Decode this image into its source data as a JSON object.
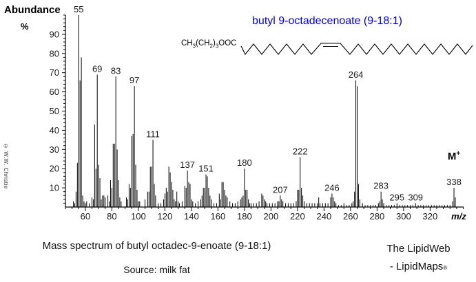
{
  "header": {
    "title": "butyl 9-octadecenoate  (9-18:1)",
    "title_color": "#0000ee"
  },
  "structure": {
    "formula_parts": {
      "p1": "CH",
      "s1": "3",
      "p2": "(CH",
      "s2": "2",
      "p3": ")",
      "s3": "3",
      "p4": "OOC"
    },
    "description": "cis double bond skeletal chain"
  },
  "axes": {
    "y_axis_title": "Abundance",
    "y_axis_unit": "%",
    "x_axis_title": "m/z",
    "x_ticks": [
      60,
      80,
      100,
      120,
      140,
      160,
      180,
      200,
      220,
      240,
      260,
      280,
      300,
      320
    ],
    "y_ticks": [
      10,
      20,
      30,
      40,
      50,
      60,
      70,
      80,
      90
    ]
  },
  "chart_data": {
    "type": "bar",
    "subtype": "mass-spectrum",
    "title": "butyl 9-octadecenoate (9-18:1)",
    "xlabel": "m/z",
    "ylabel": "Abundance %",
    "xlim": [
      45,
      345
    ],
    "ylim": [
      0,
      100
    ],
    "grid": false,
    "peaks": [
      [
        51,
        3
      ],
      [
        52,
        2
      ],
      [
        53,
        8
      ],
      [
        54,
        23
      ],
      [
        55,
        100
      ],
      [
        56,
        66
      ],
      [
        57,
        78
      ],
      [
        58,
        6
      ],
      [
        59,
        3
      ],
      [
        60,
        2
      ],
      [
        61,
        3
      ],
      [
        63,
        2
      ],
      [
        65,
        5
      ],
      [
        66,
        4
      ],
      [
        67,
        43
      ],
      [
        68,
        20
      ],
      [
        69,
        69
      ],
      [
        70,
        22
      ],
      [
        71,
        15
      ],
      [
        72,
        4
      ],
      [
        73,
        6
      ],
      [
        74,
        6
      ],
      [
        75,
        5
      ],
      [
        77,
        6
      ],
      [
        78,
        3
      ],
      [
        79,
        14
      ],
      [
        80,
        10
      ],
      [
        81,
        33
      ],
      [
        82,
        33
      ],
      [
        83,
        68
      ],
      [
        84,
        30
      ],
      [
        85,
        14
      ],
      [
        86,
        5
      ],
      [
        87,
        3
      ],
      [
        91,
        5
      ],
      [
        92,
        4
      ],
      [
        93,
        12
      ],
      [
        94,
        10
      ],
      [
        95,
        37
      ],
      [
        96,
        38
      ],
      [
        97,
        63
      ],
      [
        98,
        22
      ],
      [
        99,
        9
      ],
      [
        100,
        3
      ],
      [
        101,
        3
      ],
      [
        105,
        4
      ],
      [
        107,
        8
      ],
      [
        108,
        8
      ],
      [
        109,
        21
      ],
      [
        110,
        21
      ],
      [
        111,
        35
      ],
      [
        112,
        12
      ],
      [
        113,
        6
      ],
      [
        115,
        2
      ],
      [
        117,
        2
      ],
      [
        119,
        4
      ],
      [
        120,
        7
      ],
      [
        121,
        10
      ],
      [
        122,
        8
      ],
      [
        123,
        21
      ],
      [
        124,
        18
      ],
      [
        125,
        13
      ],
      [
        126,
        9
      ],
      [
        127,
        4
      ],
      [
        128,
        3
      ],
      [
        129,
        8
      ],
      [
        130,
        3
      ],
      [
        131,
        2
      ],
      [
        133,
        3
      ],
      [
        135,
        11
      ],
      [
        136,
        10
      ],
      [
        137,
        19
      ],
      [
        138,
        13
      ],
      [
        139,
        12
      ],
      [
        140,
        4
      ],
      [
        141,
        3
      ],
      [
        143,
        2
      ],
      [
        145,
        3
      ],
      [
        147,
        4
      ],
      [
        148,
        6
      ],
      [
        149,
        10
      ],
      [
        150,
        10
      ],
      [
        151,
        17
      ],
      [
        152,
        16
      ],
      [
        153,
        10
      ],
      [
        154,
        6
      ],
      [
        155,
        4
      ],
      [
        157,
        2
      ],
      [
        159,
        2
      ],
      [
        161,
        7
      ],
      [
        162,
        4
      ],
      [
        163,
        13
      ],
      [
        164,
        13
      ],
      [
        165,
        9
      ],
      [
        166,
        6
      ],
      [
        167,
        5
      ],
      [
        169,
        3
      ],
      [
        171,
        2
      ],
      [
        173,
        2
      ],
      [
        175,
        3
      ],
      [
        177,
        4
      ],
      [
        178,
        5
      ],
      [
        179,
        6
      ],
      [
        180,
        20
      ],
      [
        181,
        9
      ],
      [
        182,
        9
      ],
      [
        183,
        4
      ],
      [
        184,
        2
      ],
      [
        185,
        2
      ],
      [
        187,
        2
      ],
      [
        189,
        2
      ],
      [
        191,
        3
      ],
      [
        193,
        7
      ],
      [
        194,
        6
      ],
      [
        195,
        4
      ],
      [
        196,
        3
      ],
      [
        197,
        2
      ],
      [
        199,
        2
      ],
      [
        201,
        2
      ],
      [
        203,
        2
      ],
      [
        205,
        3
      ],
      [
        206,
        3
      ],
      [
        207,
        6
      ],
      [
        208,
        4
      ],
      [
        209,
        3
      ],
      [
        211,
        2
      ],
      [
        213,
        2
      ],
      [
        215,
        2
      ],
      [
        217,
        2
      ],
      [
        219,
        3
      ],
      [
        220,
        9
      ],
      [
        221,
        9
      ],
      [
        222,
        26
      ],
      [
        223,
        10
      ],
      [
        224,
        6
      ],
      [
        225,
        3
      ],
      [
        227,
        2
      ],
      [
        229,
        2
      ],
      [
        231,
        2
      ],
      [
        233,
        2
      ],
      [
        235,
        2
      ],
      [
        236,
        5
      ],
      [
        237,
        2
      ],
      [
        239,
        2
      ],
      [
        241,
        2
      ],
      [
        243,
        2
      ],
      [
        245,
        5
      ],
      [
        246,
        7
      ],
      [
        247,
        5
      ],
      [
        248,
        3
      ],
      [
        249,
        2
      ],
      [
        251,
        1
      ],
      [
        253,
        1
      ],
      [
        255,
        2
      ],
      [
        257,
        1
      ],
      [
        259,
        1
      ],
      [
        261,
        2
      ],
      [
        262,
        3
      ],
      [
        263,
        8
      ],
      [
        264,
        66
      ],
      [
        265,
        63
      ],
      [
        266,
        12
      ],
      [
        267,
        4
      ],
      [
        269,
        2
      ],
      [
        271,
        1
      ],
      [
        273,
        1
      ],
      [
        275,
        1
      ],
      [
        277,
        1
      ],
      [
        279,
        1
      ],
      [
        281,
        2
      ],
      [
        282,
        3
      ],
      [
        283,
        8
      ],
      [
        284,
        4
      ],
      [
        285,
        2
      ],
      [
        287,
        1
      ],
      [
        289,
        1
      ],
      [
        291,
        1
      ],
      [
        293,
        1
      ],
      [
        295,
        2
      ],
      [
        297,
        1
      ],
      [
        299,
        1
      ],
      [
        301,
        1
      ],
      [
        303,
        1
      ],
      [
        305,
        1
      ],
      [
        307,
        1
      ],
      [
        309,
        2
      ],
      [
        311,
        1
      ],
      [
        313,
        1
      ],
      [
        315,
        1
      ],
      [
        317,
        1
      ],
      [
        319,
        1
      ],
      [
        321,
        1
      ],
      [
        323,
        1
      ],
      [
        325,
        1
      ],
      [
        327,
        1
      ],
      [
        329,
        1
      ],
      [
        331,
        1
      ],
      [
        333,
        1
      ],
      [
        335,
        1
      ],
      [
        337,
        3
      ],
      [
        338,
        10
      ],
      [
        339,
        5
      ]
    ],
    "labeled_peaks": [
      {
        "mz": 55,
        "label": "55"
      },
      {
        "mz": 69,
        "label": "69"
      },
      {
        "mz": 83,
        "label": "83"
      },
      {
        "mz": 97,
        "label": "97"
      },
      {
        "mz": 111,
        "label": "111"
      },
      {
        "mz": 137,
        "label": "137"
      },
      {
        "mz": 151,
        "label": "151"
      },
      {
        "mz": 180,
        "label": "180"
      },
      {
        "mz": 207,
        "label": "207"
      },
      {
        "mz": 222,
        "label": "222"
      },
      {
        "mz": 246,
        "label": "246"
      },
      {
        "mz": 264,
        "label": "264"
      },
      {
        "mz": 283,
        "label": "283"
      },
      {
        "mz": 295,
        "label": "295"
      },
      {
        "mz": 309,
        "label": "309"
      },
      {
        "mz": 338,
        "label": "338"
      }
    ],
    "molecular_ion": {
      "mz": 338,
      "label_main": "M",
      "label_sup": "+"
    }
  },
  "annotations": {
    "copyright": "© W.W. Christie"
  },
  "footer": {
    "caption": "Mass spectrum of butyl octadec-9-enoate (9-18:1)",
    "source": "Source: milk fat",
    "brand_line1": "The LipidWeb",
    "brand_line2": "- LipidMaps",
    "brand_reg": "®"
  }
}
